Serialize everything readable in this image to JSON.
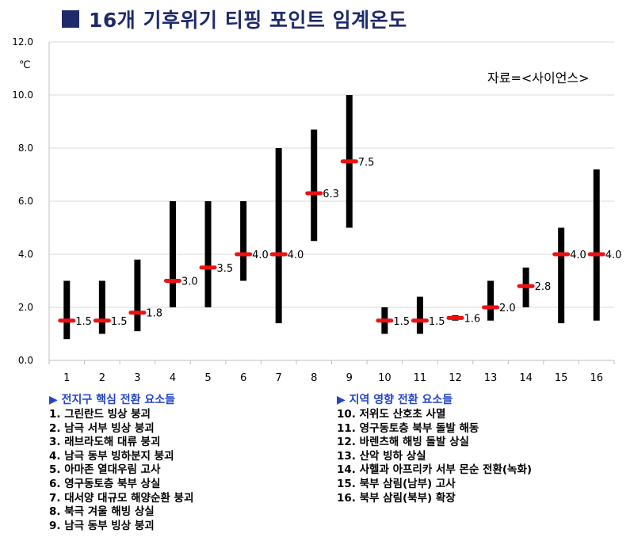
{
  "title": "16개 기후위기 티핑 포인트 임계온도",
  "source_note": "자료=<사이언스>",
  "unit": "℃",
  "colors": {
    "title": "#1f2a6b",
    "bar": "#000000",
    "marker": "#ee1111",
    "header": "#2244cc",
    "grid": "#d9d9d9"
  },
  "chart_data": {
    "type": "bar",
    "title": "16개 기후위기 티핑 포인트 임계온도",
    "ylabel": "℃",
    "xlabel": "",
    "ylim": [
      0,
      12
    ],
    "yticks": [
      "0.0",
      "2.0",
      "4.0",
      "6.0",
      "8.0",
      "10.0",
      "12.0"
    ],
    "categories": [
      "1",
      "2",
      "3",
      "4",
      "5",
      "6",
      "7",
      "8",
      "9",
      "10",
      "11",
      "12",
      "13",
      "14",
      "15",
      "16"
    ],
    "low": [
      0.8,
      1.0,
      1.1,
      2.0,
      2.0,
      3.0,
      1.4,
      4.5,
      5.0,
      1.0,
      1.0,
      1.5,
      1.5,
      2.0,
      1.4,
      1.5
    ],
    "high": [
      3.0,
      3.0,
      3.8,
      6.0,
      6.0,
      6.0,
      8.0,
      8.7,
      10.0,
      2.0,
      2.4,
      1.7,
      3.0,
      3.5,
      5.0,
      7.2
    ],
    "central": [
      1.5,
      1.5,
      1.8,
      3.0,
      3.5,
      4.0,
      4.0,
      6.3,
      7.5,
      1.5,
      1.5,
      1.6,
      2.0,
      2.8,
      4.0,
      4.0
    ],
    "central_labels": [
      "1.5",
      "1.5",
      "1.8",
      "3.0",
      "3.5",
      "4.0",
      "4.0",
      "6.3",
      "7.5",
      "1.5",
      "1.5",
      "1.6",
      "2.0",
      "2.8",
      "4.0",
      "4.0"
    ],
    "grid": true
  },
  "left_list": {
    "header": "▶ 전지구 핵심 전환 요소들",
    "items": [
      "1. 그린란드 빙상 붕괴",
      "2. 남극 서부 빙상 붕괴",
      "3. 래브라도해 대류 붕괴",
      "4. 남극 동부 빙하분지 붕괴",
      "5. 아마존 열대우림 고사",
      "6. 영구동토층 북부 상실",
      "7. 대서양 대규모 해양순환 붕괴",
      "8. 북극 겨울 해빙 상실",
      "9. 남극 동부 빙상 붕괴"
    ]
  },
  "right_list": {
    "header": "▶ 지역 영향 전환 요소들",
    "items": [
      "10. 저위도 산호초 사멸",
      "11. 영구동토층 북부 돌발 해동",
      "12. 바렌츠해 해빙 돌발 상실",
      "13. 산악 빙하 상실",
      "14. 사헬과 아프리카 서부 몬순 전환(녹화)",
      "15. 북부 삼림(남부) 고사",
      "16. 북부 삼림(북부) 확장"
    ]
  }
}
